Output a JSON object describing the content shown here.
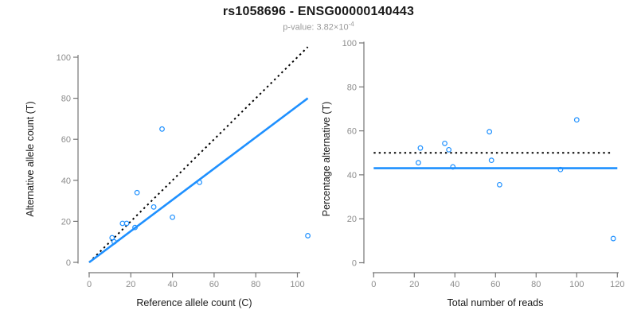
{
  "header": {
    "title": "rs1058696 - ENSG00000140443",
    "subtitle_prefix": "p-value: 3.82×10",
    "subtitle_exponent": "-4"
  },
  "colors": {
    "accent_blue": "#1E90FF",
    "dotted_black": "#000000",
    "axis_line": "#757575",
    "tick_label": "#8c8c8c",
    "subtitle_gray": "#9a9a9a",
    "title_text": "#1a1a1a"
  },
  "chart_data": [
    {
      "type": "scatter",
      "name": "allele-counts-panel",
      "xlabel": "Reference allele count (C)",
      "ylabel": "Alternative allele count (T)",
      "xlim": [
        0,
        105
      ],
      "ylim": [
        0,
        105
      ],
      "xticks": [
        0,
        20,
        40,
        60,
        80,
        100
      ],
      "yticks": [
        0,
        20,
        40,
        60,
        80,
        100
      ],
      "grid": false,
      "points": [
        [
          11,
          12
        ],
        [
          12,
          10
        ],
        [
          16,
          19
        ],
        [
          18,
          19
        ],
        [
          22,
          17
        ],
        [
          23,
          34
        ],
        [
          31,
          27
        ],
        [
          35,
          65
        ],
        [
          40,
          22
        ],
        [
          53,
          39
        ],
        [
          105,
          13
        ]
      ],
      "lines": [
        {
          "name": "identity-line",
          "style": "dotted",
          "color": "#000000",
          "x1": 0,
          "y1": 0,
          "x2": 105,
          "y2": 105
        },
        {
          "name": "fit-line",
          "style": "solid",
          "color": "#1E90FF",
          "x1": 0,
          "y1": 0,
          "x2": 105,
          "y2": 80
        }
      ]
    },
    {
      "type": "scatter",
      "name": "percentage-reads-panel",
      "xlabel": "Total number of reads",
      "ylabel": "Percentage alternative (T)",
      "xlim": [
        0,
        120
      ],
      "ylim": [
        0,
        100
      ],
      "xticks": [
        0,
        20,
        40,
        60,
        80,
        100,
        120
      ],
      "yticks": [
        0,
        20,
        40,
        60,
        80,
        100
      ],
      "grid": false,
      "points": [
        [
          22,
          45.5
        ],
        [
          23,
          52.2
        ],
        [
          35,
          54.3
        ],
        [
          37,
          51.4
        ],
        [
          39,
          43.6
        ],
        [
          57,
          59.6
        ],
        [
          58,
          46.6
        ],
        [
          62,
          35.5
        ],
        [
          92,
          42.4
        ],
        [
          100,
          65
        ],
        [
          118,
          11
        ]
      ],
      "lines": [
        {
          "name": "expected-50pct-line",
          "style": "dotted",
          "color": "#000000",
          "x1": 0,
          "y1": 50,
          "x2": 117,
          "y2": 50
        },
        {
          "name": "mean-percentage-line",
          "style": "solid",
          "color": "#1E90FF",
          "x1": 0,
          "y1": 43,
          "x2": 120,
          "y2": 43
        }
      ]
    }
  ]
}
